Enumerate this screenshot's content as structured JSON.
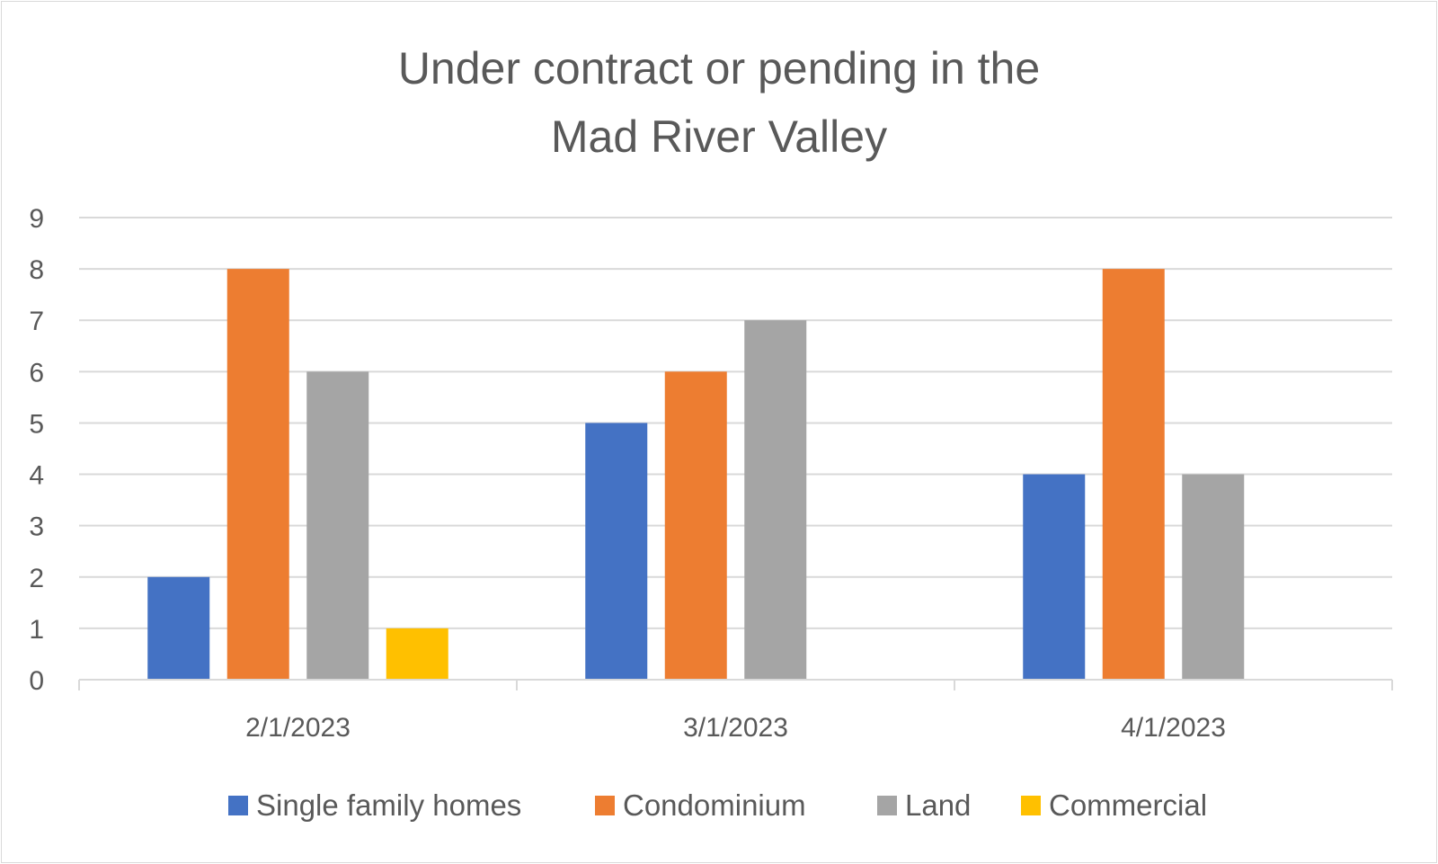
{
  "chart_data": {
    "type": "bar",
    "title_lines": [
      "Under contract or pending in the",
      "Mad River Valley"
    ],
    "categories": [
      "2/1/2023",
      "3/1/2023",
      "4/1/2023"
    ],
    "series": [
      {
        "name": "Single family homes",
        "color": "#4472c4",
        "values": [
          2,
          5,
          4
        ]
      },
      {
        "name": "Condominium",
        "color": "#ed7d31",
        "values": [
          8,
          6,
          8
        ]
      },
      {
        "name": "Land",
        "color": "#a5a5a5",
        "values": [
          6,
          7,
          4
        ]
      },
      {
        "name": "Commercial",
        "color": "#ffc000",
        "values": [
          1,
          0,
          0
        ]
      }
    ],
    "ylim": [
      0,
      9
    ],
    "yticks": [
      0,
      1,
      2,
      3,
      4,
      5,
      6,
      7,
      8,
      9
    ],
    "grid": true,
    "legend_position": "bottom"
  }
}
